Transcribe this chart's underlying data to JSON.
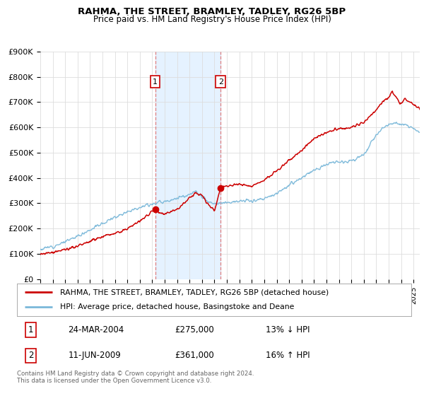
{
  "title": "RAHMA, THE STREET, BRAMLEY, TADLEY, RG26 5BP",
  "subtitle": "Price paid vs. HM Land Registry's House Price Index (HPI)",
  "ylim": [
    0,
    900000
  ],
  "yticks": [
    0,
    100000,
    200000,
    300000,
    400000,
    500000,
    600000,
    700000,
    800000,
    900000
  ],
  "ytick_labels": [
    "£0",
    "£100K",
    "£200K",
    "£300K",
    "£400K",
    "£500K",
    "£600K",
    "£700K",
    "£800K",
    "£900K"
  ],
  "xlim_start": 1995.0,
  "xlim_end": 2025.5,
  "sale1_x": 2004.23,
  "sale1_y": 275000,
  "sale2_x": 2009.5,
  "sale2_y": 361000,
  "hpi_color": "#7ab8d9",
  "price_color": "#cc0000",
  "shade_color": "#ddeeff",
  "vline_color": "#e08080",
  "legend_line1": "RAHMA, THE STREET, BRAMLEY, TADLEY, RG26 5BP (detached house)",
  "legend_line2": "HPI: Average price, detached house, Basingstoke and Deane",
  "table_row1": [
    "1",
    "24-MAR-2004",
    "£275,000",
    "13% ↓ HPI"
  ],
  "table_row2": [
    "2",
    "11-JUN-2009",
    "£361,000",
    "16% ↑ HPI"
  ],
  "footnote": "Contains HM Land Registry data © Crown copyright and database right 2024.\nThis data is licensed under the Open Government Licence v3.0.",
  "background_color": "#ffffff",
  "grid_color": "#dddddd",
  "box_label_color": "#cc0000"
}
